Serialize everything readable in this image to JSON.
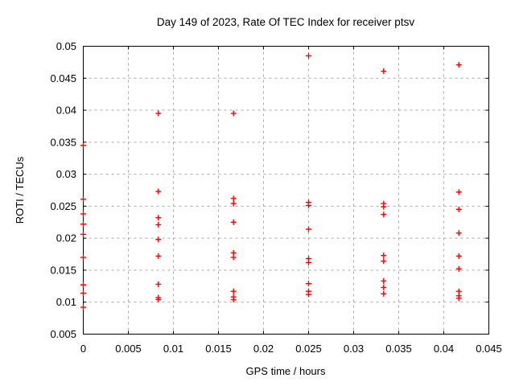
{
  "chart_data": {
    "type": "scatter",
    "title": "Day 149 of 2023, Rate Of TEC Index for receiver ptsv",
    "xlabel": "GPS time / hours",
    "ylabel": "ROTI / TECUs",
    "xlim": [
      0,
      0.045
    ],
    "ylim": [
      0.005,
      0.05
    ],
    "grid": true,
    "legend": "none",
    "xticks": [
      {
        "value": 0,
        "label": "0"
      },
      {
        "value": 0.005,
        "label": "0.005"
      },
      {
        "value": 0.01,
        "label": "0.01"
      },
      {
        "value": 0.015,
        "label": "0.015"
      },
      {
        "value": 0.02,
        "label": "0.02"
      },
      {
        "value": 0.025,
        "label": "0.025"
      },
      {
        "value": 0.03,
        "label": "0.03"
      },
      {
        "value": 0.035,
        "label": "0.035"
      },
      {
        "value": 0.04,
        "label": "0.04"
      },
      {
        "value": 0.045,
        "label": "0.045"
      }
    ],
    "yticks": [
      {
        "value": 0.005,
        "label": "0.005"
      },
      {
        "value": 0.01,
        "label": "0.01"
      },
      {
        "value": 0.015,
        "label": "0.015"
      },
      {
        "value": 0.02,
        "label": "0.02"
      },
      {
        "value": 0.025,
        "label": "0.025"
      },
      {
        "value": 0.03,
        "label": "0.03"
      },
      {
        "value": 0.035,
        "label": "0.035"
      },
      {
        "value": 0.04,
        "label": "0.04"
      },
      {
        "value": 0.045,
        "label": "0.045"
      },
      {
        "value": 0.05,
        "label": "0.05"
      }
    ],
    "marker": {
      "symbol": "plus",
      "color": "#ff0000",
      "size": 7
    },
    "grid_color": "#a6a6a6",
    "axis_color": "#000000",
    "points": [
      [
        0,
        0.0345
      ],
      [
        0,
        0.0261
      ],
      [
        0,
        0.0238
      ],
      [
        0,
        0.0222
      ],
      [
        0,
        0.0206
      ],
      [
        0,
        0.017
      ],
      [
        0,
        0.0127
      ],
      [
        0,
        0.0114
      ],
      [
        0,
        0.0092
      ],
      [
        0.00833,
        0.0395
      ],
      [
        0.00833,
        0.0273
      ],
      [
        0.00833,
        0.0232
      ],
      [
        0.00833,
        0.0221
      ],
      [
        0.00833,
        0.0198
      ],
      [
        0.00833,
        0.0172
      ],
      [
        0.00833,
        0.0128
      ],
      [
        0.00833,
        0.0107
      ],
      [
        0.00833,
        0.0104
      ],
      [
        0.01667,
        0.0395
      ],
      [
        0.01667,
        0.0262
      ],
      [
        0.01667,
        0.0254
      ],
      [
        0.01667,
        0.0225
      ],
      [
        0.01667,
        0.0177
      ],
      [
        0.01667,
        0.017
      ],
      [
        0.01667,
        0.0117
      ],
      [
        0.01667,
        0.0108
      ],
      [
        0.01667,
        0.0104
      ],
      [
        0.025,
        0.0485
      ],
      [
        0.025,
        0.0256
      ],
      [
        0.025,
        0.0251
      ],
      [
        0.025,
        0.0214
      ],
      [
        0.025,
        0.0168
      ],
      [
        0.025,
        0.0162
      ],
      [
        0.025,
        0.0129
      ],
      [
        0.025,
        0.0117
      ],
      [
        0.025,
        0.0112
      ],
      [
        0.03333,
        0.0461
      ],
      [
        0.03333,
        0.0254
      ],
      [
        0.03333,
        0.0249
      ],
      [
        0.03333,
        0.0237
      ],
      [
        0.03333,
        0.0173
      ],
      [
        0.03333,
        0.0164
      ],
      [
        0.03333,
        0.0133
      ],
      [
        0.03333,
        0.0123
      ],
      [
        0.03333,
        0.0113
      ],
      [
        0.04167,
        0.0471
      ],
      [
        0.04167,
        0.0272
      ],
      [
        0.04167,
        0.0245
      ],
      [
        0.04167,
        0.0208
      ],
      [
        0.04167,
        0.0172
      ],
      [
        0.04167,
        0.0152
      ],
      [
        0.04167,
        0.0117
      ],
      [
        0.04167,
        0.011
      ],
      [
        0.04167,
        0.0106
      ]
    ]
  }
}
